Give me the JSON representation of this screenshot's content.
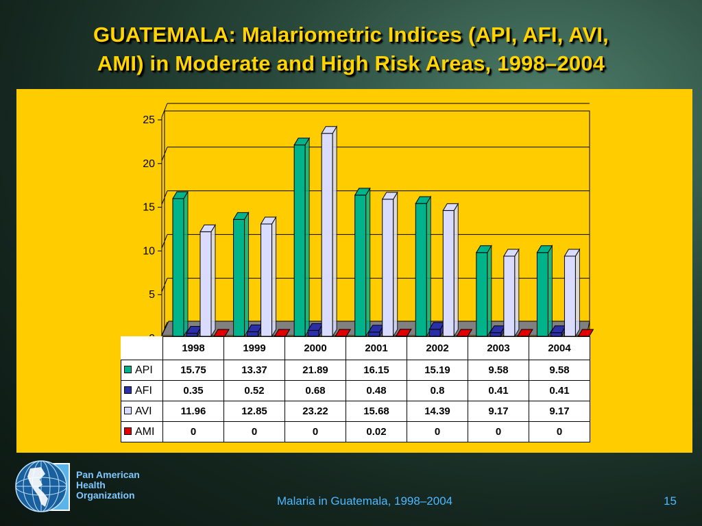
{
  "slide": {
    "title_line1": "GUATEMALA: Malariometric Indices (API, AFI, AVI,",
    "title_line2": "AMI) in Moderate and High Risk Areas, 1998–2004",
    "footer": "Malaria in Guatemala, 1998–2004",
    "page_number": "15"
  },
  "organization": {
    "line1": "Pan American",
    "line2": "Health",
    "line3": "Organization"
  },
  "chart_data": {
    "type": "bar",
    "title": "",
    "xlabel": "",
    "ylabel": "",
    "ylim": [
      0,
      25
    ],
    "yticks": [
      "0",
      "5",
      "10",
      "15",
      "20",
      "25"
    ],
    "grid": true,
    "legend_placement": "data table rows",
    "categories": [
      "1998",
      "1999",
      "2000",
      "2001",
      "2002",
      "2003",
      "2004"
    ],
    "series": [
      {
        "name": "API",
        "color": "#00b38a",
        "values": [
          15.75,
          13.37,
          21.89,
          16.15,
          15.19,
          9.58,
          9.58
        ],
        "labels": [
          "15.75",
          "13.37",
          "21.89",
          "16.15",
          "15.19",
          "9.58",
          "9.58"
        ]
      },
      {
        "name": "AFI",
        "color": "#2b2fa8",
        "values": [
          0.35,
          0.52,
          0.68,
          0.48,
          0.8,
          0.41,
          0.41
        ],
        "labels": [
          "0.35",
          "0.52",
          "0.68",
          "0.48",
          "0.8",
          "0.41",
          "0.41"
        ]
      },
      {
        "name": "AVI",
        "color": "#d9dcff",
        "values": [
          11.96,
          12.85,
          23.22,
          15.68,
          14.39,
          9.17,
          9.17
        ],
        "labels": [
          "11.96",
          "12.85",
          "23.22",
          "15.68",
          "14.39",
          "9.17",
          "9.17"
        ]
      },
      {
        "name": "AMI",
        "color": "#e00000",
        "values": [
          0,
          0,
          0,
          0.02,
          0,
          0,
          0
        ],
        "labels": [
          "0",
          "0",
          "0",
          "0.02",
          "0",
          "0",
          "0"
        ]
      }
    ]
  }
}
